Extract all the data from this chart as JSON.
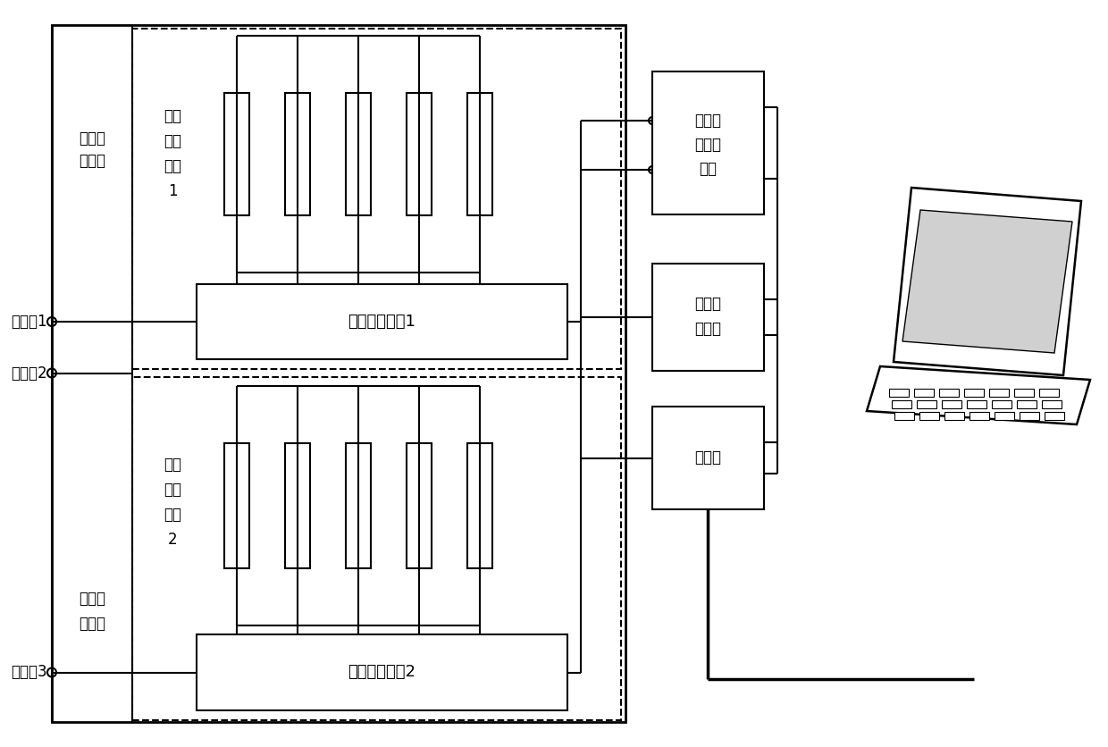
{
  "bg": "#ffffff",
  "labels": {
    "imp1a": "第一阻",
    "imp1b": "抗模块",
    "imp2a": "第一阻",
    "imp2b": "抗模块",
    "arr1a": "标准",
    "arr1b": "电阻",
    "arr1c": "阵列",
    "arr1d": "1",
    "arr2a": "标准",
    "arr2b": "电阻",
    "arr2c": "阵列",
    "arr2d": "2",
    "mux1": "多路选通开关1",
    "mux2": "多路选通开关2",
    "msw1": "多路转",
    "msw2": "换开关",
    "msw3": "模块",
    "vm1": "电压测",
    "vm2": "量模块",
    "mcu": "单片机",
    "t1": "接线端1",
    "t2": "接线端2",
    "t3": "接线端3"
  },
  "fs": 13,
  "fs_sm": 12
}
